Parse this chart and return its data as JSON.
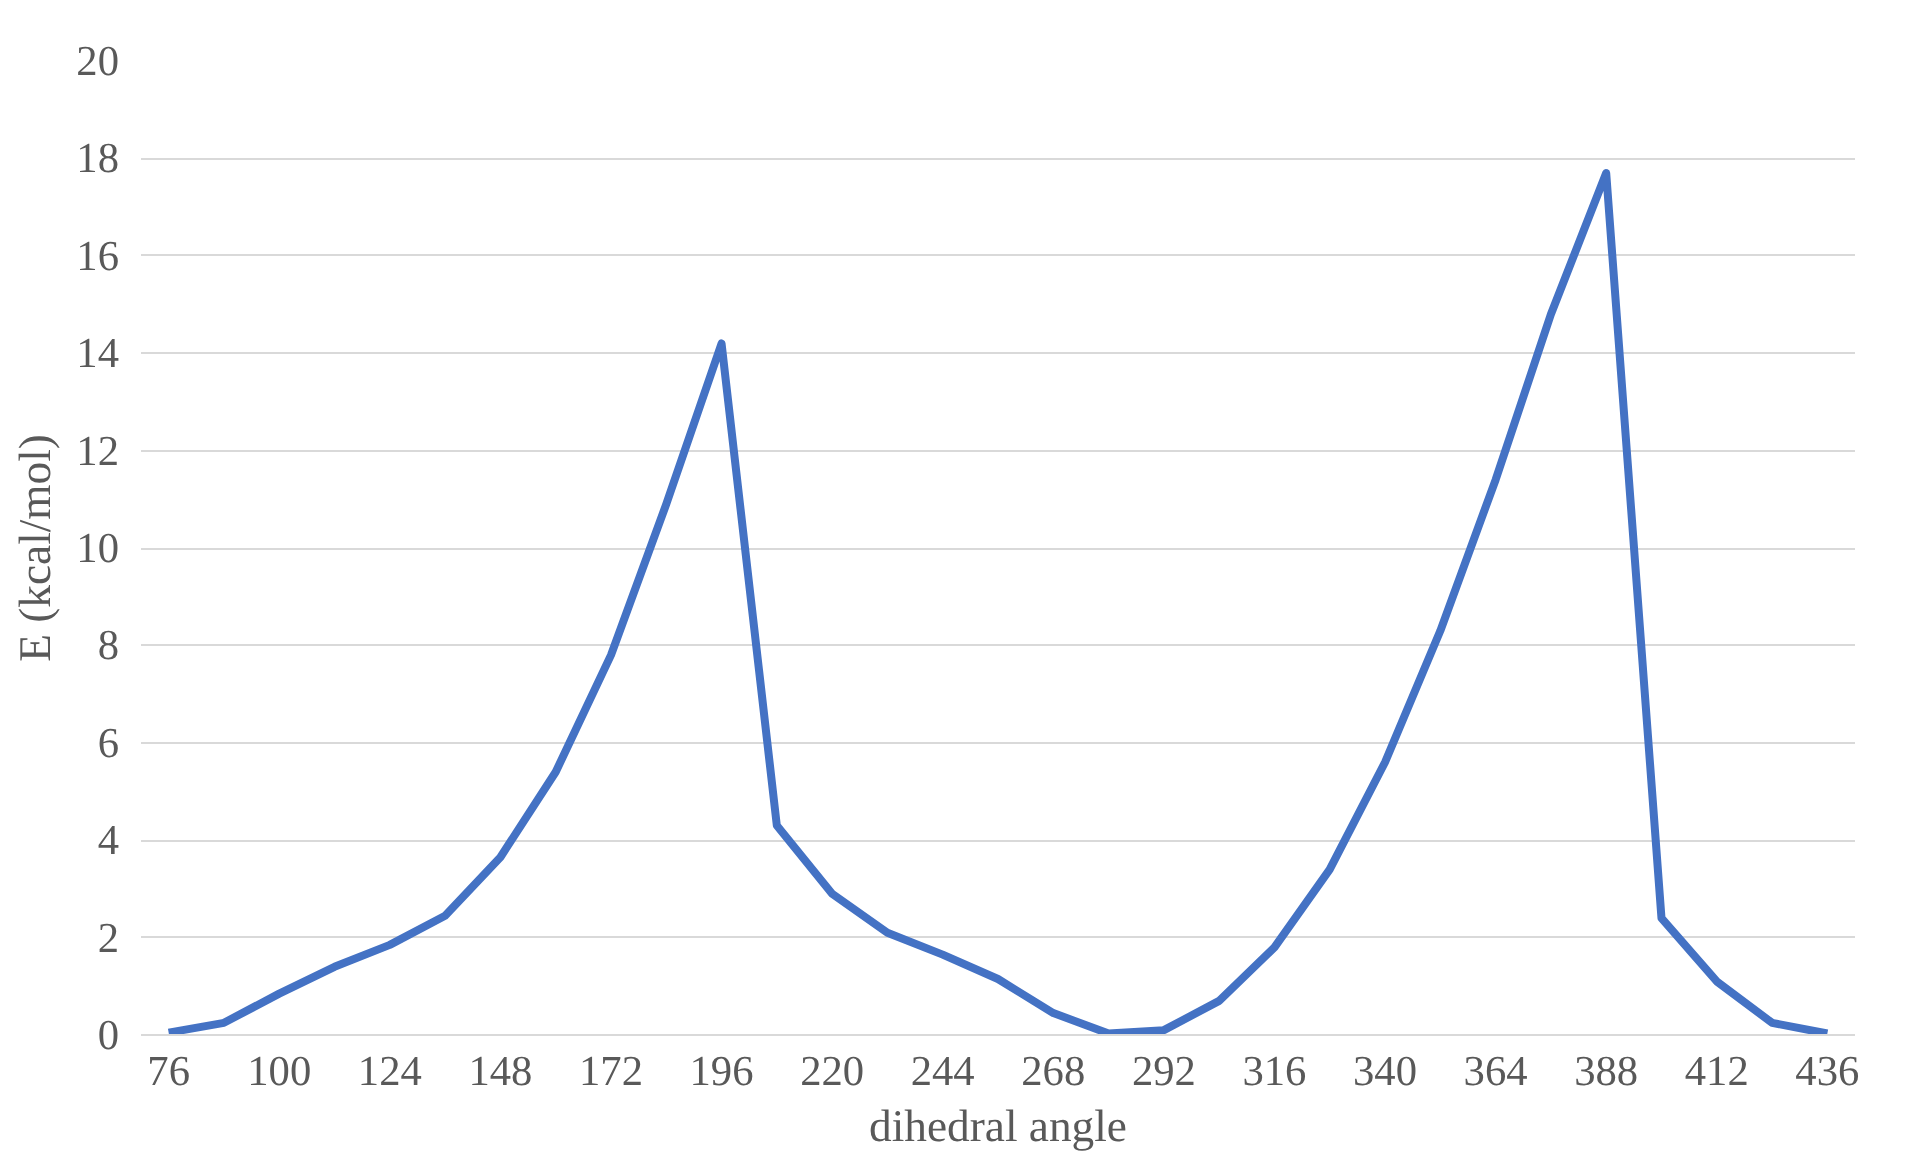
{
  "chart_data": {
    "type": "line",
    "xlabel": "dihedral angle",
    "ylabel": "E (kcal/mol)",
    "x": [
      76,
      88,
      100,
      112,
      124,
      136,
      148,
      160,
      172,
      184,
      196,
      208,
      220,
      232,
      244,
      256,
      268,
      280,
      292,
      304,
      316,
      328,
      340,
      352,
      364,
      376,
      388,
      400,
      412,
      424,
      436
    ],
    "series": [
      {
        "color": "#4472c4",
        "values": [
          0.05,
          0.25,
          0.85,
          1.4,
          1.85,
          2.45,
          3.65,
          5.4,
          7.8,
          10.9,
          14.2,
          4.3,
          2.9,
          2.1,
          1.65,
          1.15,
          0.45,
          0.03,
          0.1,
          0.7,
          1.8,
          3.4,
          5.6,
          8.3,
          11.4,
          14.8,
          17.7,
          2.4,
          1.1,
          0.25,
          0.03
        ]
      }
    ],
    "xlim": [
      70,
      442
    ],
    "xticks": [
      76,
      100,
      124,
      148,
      172,
      196,
      220,
      244,
      268,
      292,
      316,
      340,
      364,
      388,
      412,
      436
    ],
    "ylim": [
      0,
      20
    ],
    "yticks": [
      0,
      2,
      4,
      6,
      8,
      10,
      12,
      14,
      16,
      18,
      20
    ],
    "grid": "y",
    "marker": "none",
    "line_style": "solid"
  }
}
